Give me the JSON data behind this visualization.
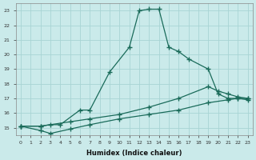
{
  "xlabel": "Humidex (Indice chaleur)",
  "bg_color": "#caeaea",
  "grid_color": "#a8d4d4",
  "line_color": "#1a6b5a",
  "xlim": [
    -0.5,
    23.5
  ],
  "ylim": [
    14.5,
    23.5
  ],
  "yticks": [
    15,
    16,
    17,
    18,
    19,
    20,
    21,
    22,
    23
  ],
  "xticks": [
    0,
    1,
    2,
    3,
    4,
    5,
    6,
    7,
    8,
    9,
    10,
    11,
    12,
    13,
    14,
    15,
    16,
    17,
    18,
    19,
    20,
    21,
    22,
    23
  ],
  "line1_x": [
    0,
    2,
    3,
    4,
    6,
    7,
    9,
    11,
    12,
    13,
    14,
    15,
    16,
    17,
    19,
    20,
    21,
    22,
    23
  ],
  "line1_y": [
    15.1,
    15.1,
    15.2,
    15.2,
    16.2,
    16.2,
    18.8,
    20.5,
    23.0,
    23.1,
    23.1,
    20.5,
    20.2,
    19.7,
    19.0,
    17.3,
    17.0,
    17.0,
    16.9
  ],
  "line2_x": [
    0,
    2,
    5,
    7,
    10,
    13,
    16,
    19,
    20,
    21,
    22,
    23
  ],
  "line2_y": [
    15.1,
    15.1,
    15.4,
    15.6,
    15.9,
    16.4,
    17.0,
    17.8,
    17.5,
    17.3,
    17.1,
    17.0
  ],
  "line3_x": [
    0,
    2,
    3,
    5,
    7,
    10,
    13,
    16,
    19,
    21,
    22,
    23
  ],
  "line3_y": [
    15.1,
    14.8,
    14.6,
    14.9,
    15.2,
    15.6,
    15.9,
    16.2,
    16.7,
    16.9,
    17.0,
    17.0
  ]
}
